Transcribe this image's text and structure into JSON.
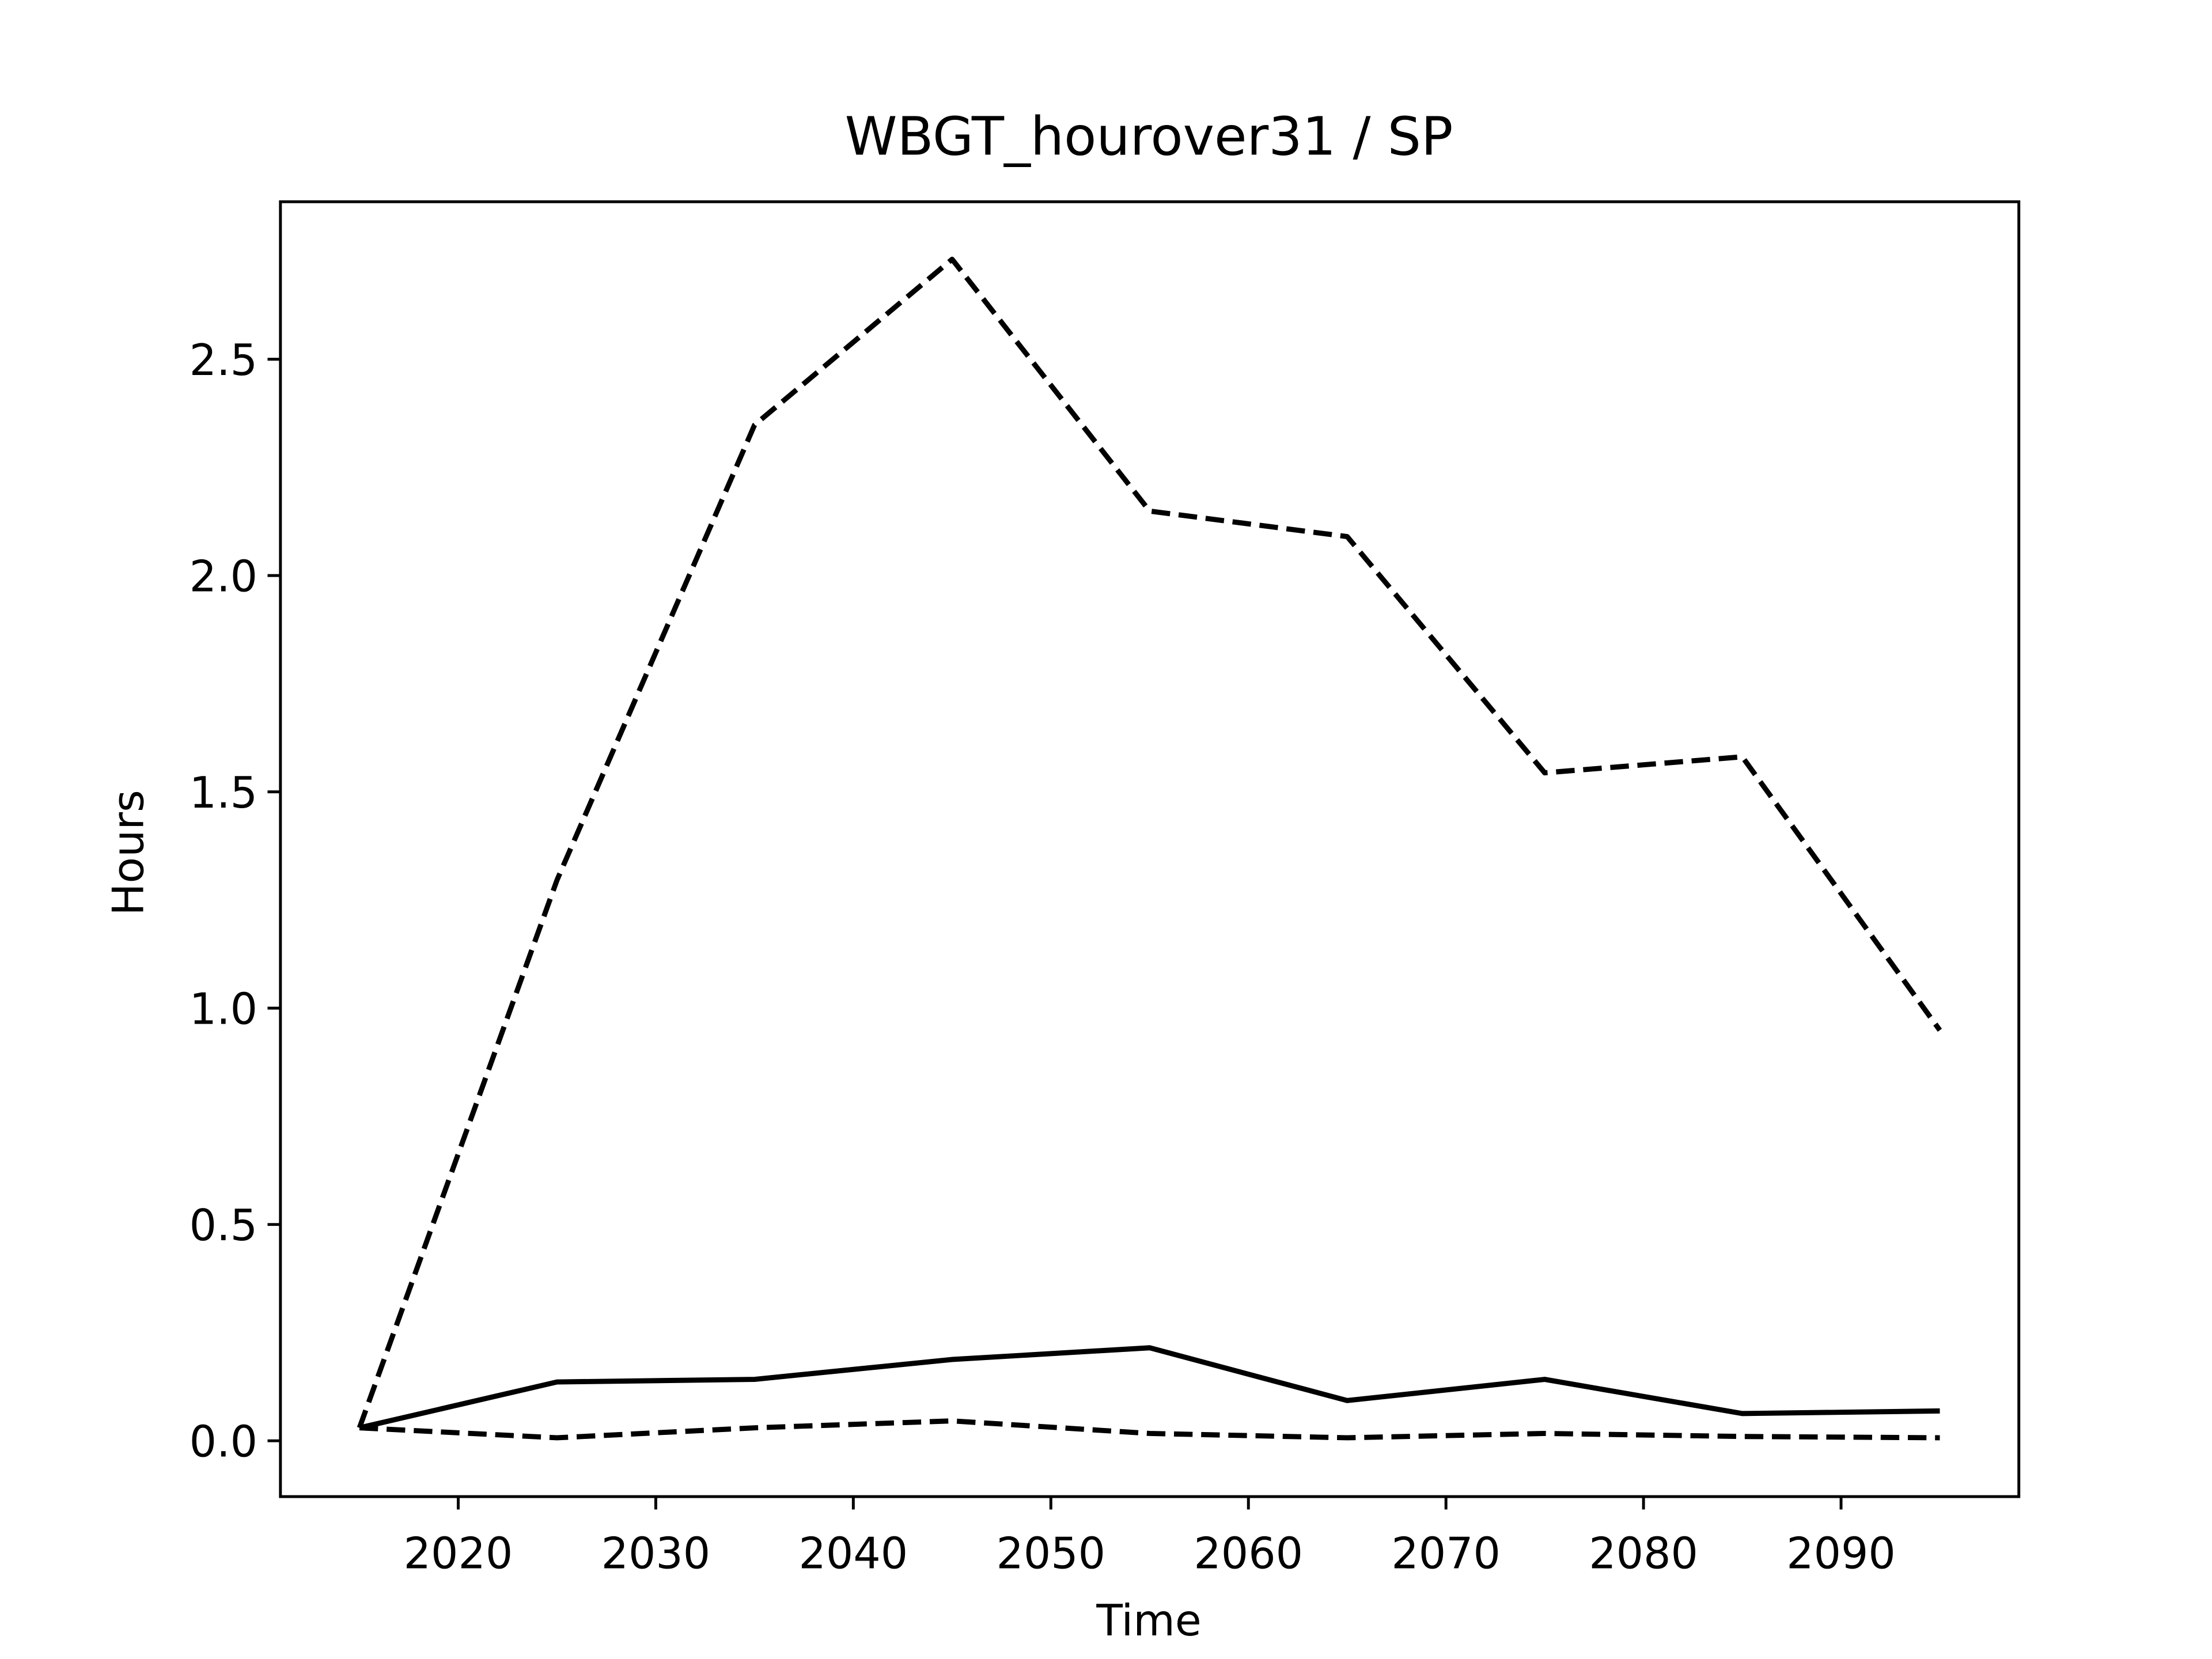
{
  "chart_data": {
    "type": "line",
    "title": "WBGT_hourover31 / SP",
    "x_label": "Time",
    "y_label": "Hours",
    "x": [
      2015,
      2025,
      2035,
      2045,
      2055,
      2065,
      2075,
      2085,
      2095
    ],
    "series": [
      {
        "color": "#000000",
        "linestyle": "dashed",
        "values": [
          0.03,
          1.296,
          2.348,
          2.731,
          2.149,
          2.09,
          1.544,
          1.581,
          0.949
        ]
      },
      {
        "color": "#000000",
        "linestyle": "solid",
        "values": [
          0.03,
          0.136,
          0.142,
          0.188,
          0.215,
          0.093,
          0.142,
          0.063,
          0.069
        ]
      },
      {
        "color": "#000000",
        "linestyle": "dashed",
        "values": [
          0.03,
          0.007,
          0.03,
          0.046,
          0.017,
          0.007,
          0.017,
          0.01,
          0.007
        ]
      }
    ],
    "xlim": [
      2011,
      2099
    ],
    "xticks": [
      2020,
      2030,
      2040,
      2050,
      2060,
      2070,
      2080,
      2090
    ],
    "ylim": [
      -0.129,
      2.864
    ],
    "yticks": [
      {
        "value": 0,
        "label": "0.0"
      },
      0.5,
      {
        "value": 1,
        "label": "1.0"
      },
      1.5,
      {
        "value": 2,
        "label": "2.0"
      },
      2.5
    ],
    "grid": false
  }
}
